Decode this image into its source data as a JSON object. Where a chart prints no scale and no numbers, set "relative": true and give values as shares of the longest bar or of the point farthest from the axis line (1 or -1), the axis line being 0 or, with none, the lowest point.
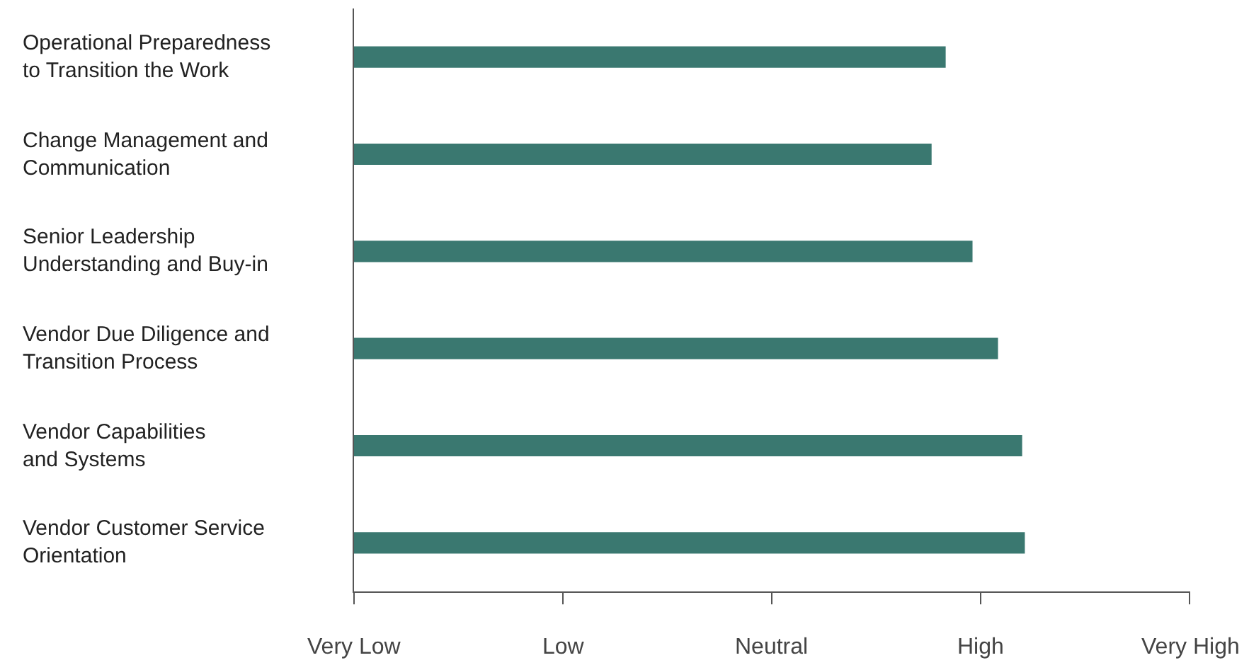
{
  "chart_data": {
    "type": "bar",
    "orientation": "horizontal",
    "relative": true,
    "categories": [
      "Operational Preparedness\nto Transition the Work",
      "Change Management and\nCommunication",
      "Senior Leadership\nUnderstanding and Buy-in",
      "Vendor Due Diligence and\nTransition Process",
      "Vendor Capabilities\nand Systems",
      "Vendor Customer Service\nOrientation"
    ],
    "values": [
      0.882,
      0.861,
      0.922,
      0.96,
      0.996,
      1
    ],
    "color": "#3a7870",
    "annotations": [
      "Very Low",
      "Low",
      "Neutral",
      "High",
      "Very High"
    ],
    "legend": false
  }
}
